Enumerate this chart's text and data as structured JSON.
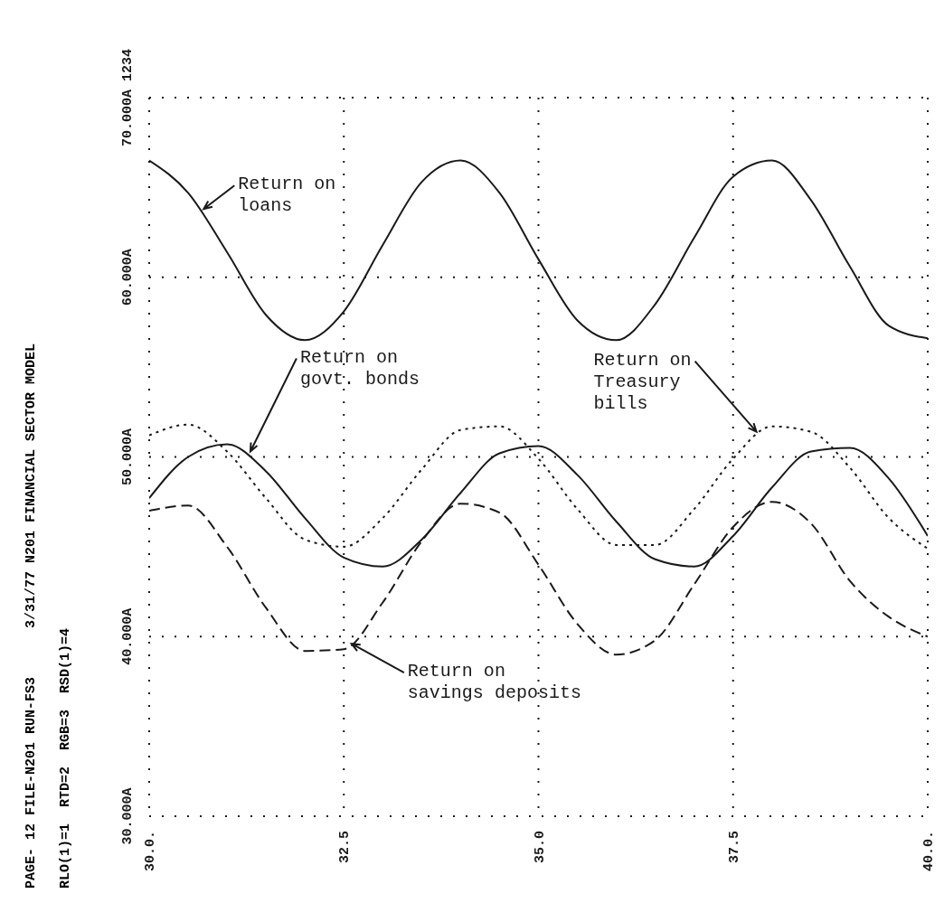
{
  "chart_data": {
    "type": "line",
    "title": "PAGE- 12 FILE-N201 RUN-FS3      3/31/77 N201 FINANCIAL SECTOR MODEL",
    "subtitle": "RLO(1)=1  RTD=2  RGB=3  RSD(1)=4",
    "x": [
      30,
      30.5,
      31,
      31.5,
      32,
      32.5,
      33,
      33.5,
      34,
      34.5,
      35,
      35.5,
      36,
      36.5,
      37,
      37.5,
      38,
      38.5,
      39,
      39.5,
      40
    ],
    "series": [
      {
        "color": "#1a1a1a",
        "line_style": "solid",
        "values": [
          66.5,
          64.7,
          61.4,
          57.9,
          56.5,
          58.1,
          61.8,
          65.3,
          66.5,
          64.7,
          61.0,
          57.6,
          56.5,
          58.5,
          62.2,
          65.6,
          66.5,
          64.3,
          60.6,
          57.3,
          56.6
        ]
      },
      {
        "color": "#1a1a1a",
        "line_style": "dotted",
        "values": [
          51.2,
          51.8,
          50.3,
          47.7,
          45.4,
          45.0,
          46.6,
          49.3,
          51.5,
          51.7,
          49.9,
          47.1,
          45.1,
          45.1,
          47.1,
          49.9,
          51.7,
          51.4,
          49.4,
          46.6,
          44.9
        ]
      },
      {
        "color": "#1a1a1a",
        "line_style": "solid",
        "values": [
          47.7,
          50.0,
          50.7,
          49.2,
          46.6,
          44.4,
          43.9,
          45.4,
          48.0,
          50.2,
          50.6,
          49.0,
          46.4,
          44.3,
          43.9,
          45.6,
          48.3,
          50.3,
          50.5,
          48.8,
          45.6
        ]
      },
      {
        "color": "#1a1a1a",
        "line_style": "dashed",
        "values": [
          47.0,
          47.3,
          45.0,
          41.6,
          39.2,
          39.3,
          41.9,
          45.3,
          47.4,
          46.9,
          44.0,
          40.7,
          39.0,
          39.8,
          42.9,
          46.1,
          47.5,
          46.3,
          43.1,
          41.1,
          40.0
        ]
      }
    ],
    "xlim": [
      30,
      40
    ],
    "xticks": [
      {
        "value": 30,
        "label": "30.0."
      },
      {
        "value": 32.5,
        "label": "32.5"
      },
      {
        "value": 35,
        "label": "35.0"
      },
      {
        "value": 37.5,
        "label": "37.5"
      },
      {
        "value": 40,
        "label": "40.0."
      }
    ],
    "ylim": [
      30,
      70
    ],
    "yticks": [
      {
        "value": 30,
        "label": "30.000A"
      },
      {
        "value": 40,
        "label": "40.000A"
      },
      {
        "value": 50,
        "label": "50.000A"
      },
      {
        "value": 60,
        "label": "60.000A"
      },
      {
        "value": 70,
        "label": "70.000A  1234"
      }
    ],
    "grid": true,
    "marker": "none",
    "annotations": [
      {
        "text": "Return on\nloans",
        "x": 30.7,
        "y": 63.8
      },
      {
        "text": "Return on\ngovt. bonds",
        "x": 31.3,
        "y": 50.3
      },
      {
        "text": "Return on\nTreasury\nbills",
        "x": 37.8,
        "y": 51.4
      },
      {
        "text": "Return on\nsavings deposits",
        "x": 32.6,
        "y": 39.6
      }
    ]
  }
}
